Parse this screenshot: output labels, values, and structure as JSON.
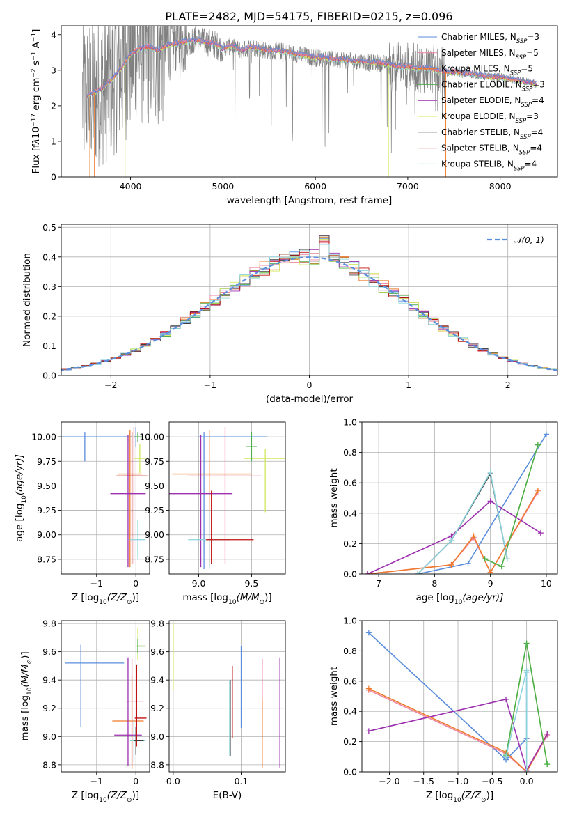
{
  "figure": {
    "title": "PLATE=2482, MJD=54175, FIBERID=0215, z=0.096"
  },
  "colors": {
    "Chabrier MILES": "#5a8ddc",
    "Salpeter MILES": "#ee84a0",
    "Kroupa MILES": "#ef7a2c",
    "Chabrier ELODIE": "#4cae4c",
    "Salpeter ELODIE": "#9b2fae",
    "Kroupa ELODIE": "#cfe85a",
    "Chabrier STELIB": "#404040",
    "Salpeter STELIB": "#c01010",
    "Kroupa STELIB": "#8cd3dc",
    "data": "#808080",
    "normal": "#5a8ddc"
  },
  "chart_data": [
    {
      "id": "spectrum",
      "type": "line",
      "xlabel": "wavelength [Angstrom, rest frame]",
      "ylabel_parts": [
        "Flux [f",
        "λ",
        "10",
        "−17",
        " erg cm",
        "−2",
        " s",
        "−1",
        " A",
        "−1",
        "]"
      ],
      "xlim": [
        3250,
        8620
      ],
      "ylim": [
        0,
        4.25
      ],
      "xticks": [
        4000,
        5000,
        6000,
        7000,
        8000
      ],
      "yticks": [
        0,
        1,
        2,
        3,
        4
      ],
      "legend_position": "top-right",
      "legend": [
        {
          "base": "Chabrier MILES, N",
          "sub": "SSP",
          "tail": "=3",
          "series": "Chabrier MILES"
        },
        {
          "base": "Salpeter MILES, N",
          "sub": "SSP",
          "tail": "=5",
          "series": "Salpeter MILES"
        },
        {
          "base": "Kroupa MILES, N",
          "sub": "SSP",
          "tail": "=5",
          "series": "Kroupa MILES"
        },
        {
          "base": "Chabrier ELODIE, N",
          "sub": "SSP",
          "tail": "=3",
          "series": "Chabrier ELODIE"
        },
        {
          "base": "Salpeter ELODIE, N",
          "sub": "SSP",
          "tail": "=4",
          "series": "Salpeter ELODIE"
        },
        {
          "base": "Kroupa ELODIE, N",
          "sub": "SSP",
          "tail": "=3",
          "series": "Kroupa ELODIE"
        },
        {
          "base": "Chabrier STELIB, N",
          "sub": "SSP",
          "tail": "=4",
          "series": "Chabrier STELIB"
        },
        {
          "base": "Salpeter STELIB, N",
          "sub": "SSP",
          "tail": "=4",
          "series": "Salpeter STELIB"
        },
        {
          "base": "Kroupa STELIB, N",
          "sub": "SSP",
          "tail": "=4",
          "series": "Kroupa STELIB"
        }
      ],
      "continuum": {
        "x": [
          3500,
          3600,
          3700,
          3800,
          3900,
          4000,
          4100,
          4200,
          4300,
          4400,
          4500,
          4600,
          4700,
          4800,
          4900,
          5000,
          5100,
          5200,
          5300,
          5400,
          5500,
          5600,
          5700,
          5800,
          5900,
          6000,
          6100,
          6200,
          6300,
          6400,
          6500,
          6600,
          6700,
          6800,
          6900,
          7000,
          7100,
          7200,
          7300,
          7400,
          7500,
          7600,
          7700,
          7800,
          7900,
          8000,
          8100,
          8200,
          8300,
          8400
        ],
        "y": [
          2.25,
          2.35,
          2.5,
          2.75,
          3.05,
          3.45,
          3.6,
          3.65,
          3.55,
          3.7,
          3.75,
          3.8,
          3.85,
          3.8,
          3.75,
          3.6,
          3.7,
          3.55,
          3.65,
          3.6,
          3.55,
          3.55,
          3.5,
          3.45,
          3.4,
          3.35,
          3.35,
          3.3,
          3.3,
          3.25,
          3.25,
          3.2,
          3.2,
          3.15,
          3.1,
          3.1,
          3.05,
          3.05,
          3.0,
          2.95,
          2.95,
          2.9,
          2.9,
          2.85,
          2.8,
          2.8,
          2.75,
          2.7,
          2.65,
          2.6
        ]
      }
    },
    {
      "id": "residuals",
      "type": "line",
      "xlabel": "(data-model)/error",
      "ylabel": "Normed distribution",
      "xlim": [
        -2.5,
        2.5
      ],
      "ylim": [
        0,
        0.51
      ],
      "xticks": [
        -2,
        -1,
        0,
        1,
        2
      ],
      "yticks": [
        0.0,
        0.1,
        0.2,
        0.3,
        0.4,
        0.5
      ],
      "grid": true,
      "legend_position": "top-right",
      "legend_label": "𝒩(0, 1)",
      "bin_width": 0.1
    },
    {
      "id": "age-vs-Z",
      "type": "scatter",
      "xlabel_parts": [
        "Z [log",
        "10",
        "(Z/Z",
        "⊙",
        ")]"
      ],
      "ylabel_parts": [
        "age  [log",
        "10",
        "(age/yr)]"
      ],
      "xlim": [
        -1.9,
        0.35
      ],
      "ylim": [
        8.6,
        10.15
      ],
      "xticks": [
        -1,
        0
      ],
      "yticks": [
        8.75,
        9.0,
        9.25,
        9.5,
        9.75,
        10.0
      ],
      "grid": true,
      "crosses": [
        {
          "series": "Chabrier MILES",
          "x": -1.3,
          "xerr": [
            0.6,
            1.2
          ],
          "y": 10.0,
          "yerr": [
            0.25,
            0.05
          ]
        },
        {
          "series": "Chabrier MILES",
          "x": 0.0,
          "xerr": [
            0.05,
            0.05
          ],
          "y": 10.0,
          "yerr": [
            0.1,
            0.1
          ]
        },
        {
          "series": "Kroupa MILES",
          "x": -0.15,
          "xerr": [
            0.3,
            0.3
          ],
          "y": 9.62,
          "yerr": [
            0.95,
            0.45
          ]
        },
        {
          "series": "Salpeter MILES",
          "x": -0.05,
          "xerr": [
            0.3,
            0.3
          ],
          "y": 9.6,
          "yerr": [
            0.9,
            0.5
          ]
        },
        {
          "series": "Salpeter STELIB",
          "x": -0.1,
          "xerr": [
            0.4,
            0.4
          ],
          "y": 9.6,
          "yerr": [
            0.9,
            0.45
          ]
        },
        {
          "series": "Salpeter ELODIE",
          "x": -0.2,
          "xerr": [
            0.45,
            0.45
          ],
          "y": 9.42,
          "yerr": [
            0.75,
            0.6
          ]
        },
        {
          "series": "Kroupa ELODIE",
          "x": 0.1,
          "xerr": [
            0.15,
            0.15
          ],
          "y": 9.78,
          "yerr": [
            0.15,
            0.15
          ]
        },
        {
          "series": "Chabrier ELODIE",
          "x": 0.05,
          "xerr": [
            0.1,
            0.1
          ],
          "y": 10.0,
          "yerr": [
            0.05,
            0.05
          ]
        },
        {
          "series": "Kroupa STELIB",
          "x": 0.05,
          "xerr": [
            0.2,
            0.2
          ],
          "y": 8.95,
          "yerr": [
            0.2,
            0.2
          ]
        }
      ]
    },
    {
      "id": "age-vs-mass",
      "type": "scatter",
      "xlabel_parts": [
        "mass [log",
        "10",
        "(M/M",
        "⊙",
        ")]"
      ],
      "xlim": [
        8.72,
        9.82
      ],
      "ylim": [
        8.6,
        10.15
      ],
      "xticks": [
        9.0,
        9.5
      ],
      "yticks": [
        8.75,
        9.0,
        9.25,
        9.5,
        9.75,
        10.0
      ],
      "grid": true,
      "crosses": [
        {
          "series": "Chabrier MILES",
          "x": 9.05,
          "xerr": [
            0.05,
            0.6
          ],
          "y": 10.0,
          "yerr": [
            1.35,
            0.05
          ]
        },
        {
          "series": "Kroupa MILES",
          "x": 9.1,
          "xerr": [
            0.35,
            0.4
          ],
          "y": 9.62,
          "yerr": [
            0.95,
            0.45
          ]
        },
        {
          "series": "Salpeter MILES",
          "x": 9.25,
          "xerr": [
            0.35,
            0.35
          ],
          "y": 9.6,
          "yerr": [
            0.9,
            0.5
          ]
        },
        {
          "series": "Salpeter ELODIE",
          "x": 9.02,
          "xerr": [
            0.3,
            0.3
          ],
          "y": 9.42,
          "yerr": [
            0.75,
            0.6
          ]
        },
        {
          "series": "Kroupa ELODIE",
          "x": 9.63,
          "xerr": [
            0.2,
            0.2
          ],
          "y": 9.78,
          "yerr": [
            0.55,
            0.1
          ]
        },
        {
          "series": "Kroupa STELIB",
          "x": 9.1,
          "xerr": [
            0.2,
            0.2
          ],
          "y": 8.95,
          "yerr": [
            0.3,
            0.3
          ]
        },
        {
          "series": "Salpeter STELIB",
          "x": 9.12,
          "xerr": [
            0.05,
            0.4
          ],
          "y": 8.95,
          "yerr": [
            0.25,
            0.5
          ]
        },
        {
          "series": "Chabrier ELODIE",
          "x": 9.5,
          "xerr": [
            0.05,
            0.05
          ],
          "y": 9.9,
          "yerr": [
            0.15,
            0.15
          ]
        }
      ]
    },
    {
      "id": "weight-vs-age",
      "type": "line",
      "xlabel_parts": [
        "age  [log",
        "10",
        "(age/yr)]"
      ],
      "ylabel": "mass weight",
      "xlim": [
        6.7,
        10.2
      ],
      "ylim": [
        0,
        1.0
      ],
      "xticks": [
        7,
        8,
        9,
        10
      ],
      "yticks": [
        0.0,
        0.2,
        0.4,
        0.6,
        0.8,
        1.0
      ],
      "grid": true,
      "series": [
        {
          "name": "Chabrier MILES",
          "x": [
            7.7,
            8.6,
            10.0
          ],
          "y": [
            0.0,
            0.07,
            0.92
          ]
        },
        {
          "name": "Salpeter MILES",
          "x": [
            6.8,
            8.3,
            8.7,
            9.0,
            9.85
          ],
          "y": [
            0.0,
            0.06,
            0.24,
            0.01,
            0.54
          ]
        },
        {
          "name": "Kroupa MILES",
          "x": [
            6.8,
            8.3,
            8.7,
            9.0,
            9.85
          ],
          "y": [
            0.0,
            0.06,
            0.25,
            0.01,
            0.55
          ]
        },
        {
          "name": "Salpeter ELODIE",
          "x": [
            6.8,
            8.3,
            9.0,
            9.9
          ],
          "y": [
            0.0,
            0.25,
            0.48,
            0.27
          ]
        },
        {
          "name": "Kroupa ELODIE",
          "x": [
            8.9,
            9.2,
            9.85
          ],
          "y": [
            0.1,
            0.05,
            0.85
          ]
        },
        {
          "name": "Chabrier ELODIE",
          "x": [
            8.9,
            9.2,
            9.85
          ],
          "y": [
            0.1,
            0.05,
            0.85
          ]
        },
        {
          "name": "Chabrier STELIB",
          "x": [
            7.7,
            8.3,
            9.0,
            9.3
          ],
          "y": [
            0.0,
            0.22,
            0.66,
            0.1
          ]
        },
        {
          "name": "Kroupa STELIB",
          "x": [
            7.7,
            8.3,
            9.0,
            9.3
          ],
          "y": [
            0.0,
            0.22,
            0.67,
            0.1
          ]
        }
      ]
    },
    {
      "id": "mass-vs-Z",
      "type": "scatter",
      "xlabel_parts": [
        "Z [log",
        "10",
        "(Z/Z",
        "⊙",
        ")]"
      ],
      "ylabel_parts": [
        "mass [log",
        "10",
        "(M/M",
        "⊙",
        ")]"
      ],
      "xlim": [
        -1.9,
        0.35
      ],
      "ylim": [
        8.75,
        9.82
      ],
      "xticks": [
        -1,
        0
      ],
      "yticks": [
        8.8,
        9.0,
        9.2,
        9.4,
        9.6,
        9.8
      ],
      "grid": true,
      "crosses": [
        {
          "series": "Chabrier MILES",
          "x": -1.4,
          "xerr": [
            0.4,
            1.1
          ],
          "y": 9.52,
          "yerr": [
            0.45,
            0.13
          ]
        },
        {
          "series": "Kroupa MILES",
          "x": -0.1,
          "xerr": [
            0.5,
            0.3
          ],
          "y": 9.11,
          "yerr": [
            0.34,
            0.32
          ]
        },
        {
          "series": "Salpeter MILES",
          "x": -0.1,
          "xerr": [
            0.15,
            0.3
          ],
          "y": 9.25,
          "yerr": [
            0.45,
            0.3
          ]
        },
        {
          "series": "Salpeter ELODIE",
          "x": -0.2,
          "xerr": [
            0.35,
            0.35
          ],
          "y": 9.01,
          "yerr": [
            0.22,
            0.55
          ]
        },
        {
          "series": "Salpeter STELIB",
          "x": 0.02,
          "xerr": [
            0.05,
            0.25
          ],
          "y": 9.13,
          "yerr": [
            0.2,
            0.38
          ]
        },
        {
          "series": "Kroupa ELODIE",
          "x": 0.05,
          "xerr": [
            0.05,
            0.2
          ],
          "y": 9.64,
          "yerr": [
            0.1,
            0.13
          ]
        },
        {
          "series": "Chabrier ELODIE",
          "x": 0.05,
          "xerr": [
            0.02,
            0.2
          ],
          "y": 9.64,
          "yerr": [
            0.05,
            0.05
          ]
        },
        {
          "series": "Kroupa STELIB",
          "x": -0.05,
          "xerr": [
            0.1,
            0.3
          ],
          "y": 8.97,
          "yerr": [
            0.15,
            0.15
          ]
        },
        {
          "series": "Chabrier STELIB",
          "x": 0.0,
          "xerr": [
            0.05,
            0.2
          ],
          "y": 8.97,
          "yerr": [
            0.1,
            0.1
          ]
        }
      ]
    },
    {
      "id": "mass-vs-ebv",
      "type": "scatter",
      "xlabel": "E(B-V)",
      "xlim": [
        -0.006,
        0.165
      ],
      "ylim": [
        8.75,
        9.82
      ],
      "xticks": [
        0.0,
        0.1
      ],
      "yticks": [
        8.8,
        9.0,
        9.2,
        9.4,
        9.6,
        9.8
      ],
      "grid": true,
      "vlines": [
        {
          "series": "Kroupa ELODIE",
          "x": 0.0,
          "y": [
            9.33,
            9.8
          ]
        },
        {
          "series": "Kroupa STELIB",
          "x": 0.083,
          "y": [
            8.86,
            9.4
          ]
        },
        {
          "series": "Chabrier STELIB",
          "x": 0.084,
          "y": [
            8.86,
            9.4
          ]
        },
        {
          "series": "Salpeter STELIB",
          "x": 0.087,
          "y": [
            8.99,
            9.5
          ]
        },
        {
          "series": "Chabrier MILES",
          "x": 0.1,
          "y": [
            9.06,
            9.64
          ]
        },
        {
          "series": "Salpeter MILES",
          "x": 0.131,
          "y": [
            9.01,
            9.55
          ]
        },
        {
          "series": "Kroupa MILES",
          "x": 0.131,
          "y": [
            8.78,
            9.26
          ]
        },
        {
          "series": "Salpeter ELODIE",
          "x": 0.157,
          "y": [
            8.78,
            9.56
          ]
        }
      ]
    },
    {
      "id": "weight-vs-Z",
      "type": "line",
      "xlabel_parts": [
        "Z [log",
        "10",
        "(Z/Z",
        "⊙",
        ")]"
      ],
      "ylabel": "mass weight",
      "xlim": [
        -2.4,
        0.45
      ],
      "ylim": [
        0,
        1.0
      ],
      "xticks": [
        -2.0,
        -1.5,
        -1.0,
        -0.5,
        0.0
      ],
      "yticks": [
        0.0,
        0.2,
        0.4,
        0.6,
        0.8,
        1.0
      ],
      "grid": true,
      "series": [
        {
          "name": "Chabrier MILES",
          "x": [
            -2.3,
            -0.3,
            0.0,
            0.0
          ],
          "y": [
            0.92,
            0.08,
            0.22,
            0.66
          ]
        },
        {
          "name": "Salpeter MILES",
          "x": [
            -2.3,
            -0.3,
            0.0,
            0.3
          ],
          "y": [
            0.54,
            0.12,
            0.0,
            0.24
          ]
        },
        {
          "name": "Kroupa MILES",
          "x": [
            -2.3,
            -0.3,
            0.0,
            0.3
          ],
          "y": [
            0.55,
            0.13,
            0.0,
            0.25
          ]
        },
        {
          "name": "Salpeter ELODIE",
          "x": [
            -2.3,
            -0.3,
            0.0,
            0.3
          ],
          "y": [
            0.27,
            0.48,
            0.01,
            0.25
          ]
        },
        {
          "name": "Kroupa ELODIE",
          "x": [
            -0.3,
            0.0,
            0.3
          ],
          "y": [
            0.1,
            0.85,
            0.05
          ]
        },
        {
          "name": "Chabrier ELODIE",
          "x": [
            -0.3,
            0.0,
            0.3
          ],
          "y": [
            0.11,
            0.85,
            0.05
          ]
        },
        {
          "name": "Kroupa STELIB",
          "x": [
            -0.3,
            0.0,
            0.0
          ],
          "y": [
            0.1,
            0.67,
            0.0
          ]
        }
      ]
    }
  ]
}
